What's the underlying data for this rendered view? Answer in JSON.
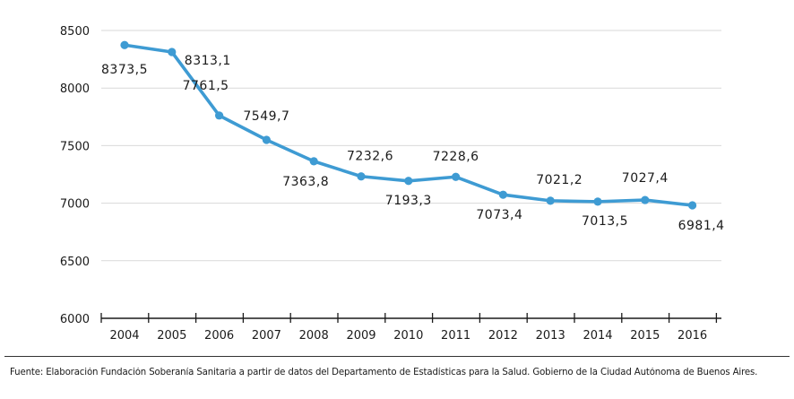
{
  "chart_data": {
    "type": "line",
    "title": "",
    "xlabel": "",
    "ylabel": "",
    "categories": [
      "2004",
      "2005",
      "2006",
      "2007",
      "2008",
      "2009",
      "2010",
      "2011",
      "2012",
      "2013",
      "2014",
      "2015",
      "2016"
    ],
    "series": [
      {
        "values": [
          8373.5,
          8313.1,
          7761.5,
          7549.7,
          7363.8,
          7232.6,
          7193.3,
          7228.6,
          7073.4,
          7021.2,
          7013.5,
          7027.4,
          6981.4
        ],
        "labels": [
          "8373,5",
          "8313,1",
          "7761,5",
          "7549,7",
          "7363,8",
          "7232,6",
          "7193,3",
          "7228,6",
          "7073,4",
          "7021,2",
          "7013,5",
          "7027,4",
          "6981,4"
        ],
        "color": "#3e9bd3"
      }
    ],
    "ylim": [
      6000,
      8500
    ],
    "yticks": [
      6000,
      6500,
      7000,
      7500,
      8000,
      8500
    ],
    "grid": true,
    "legend": "none"
  },
  "source_note": "Fuente: Elaboración Fundación Soberanía Sanitaria a partir de datos del Departamento de Estadísticas para la Salud. Gobierno de la Ciudad Autónoma de Buenos Aires."
}
